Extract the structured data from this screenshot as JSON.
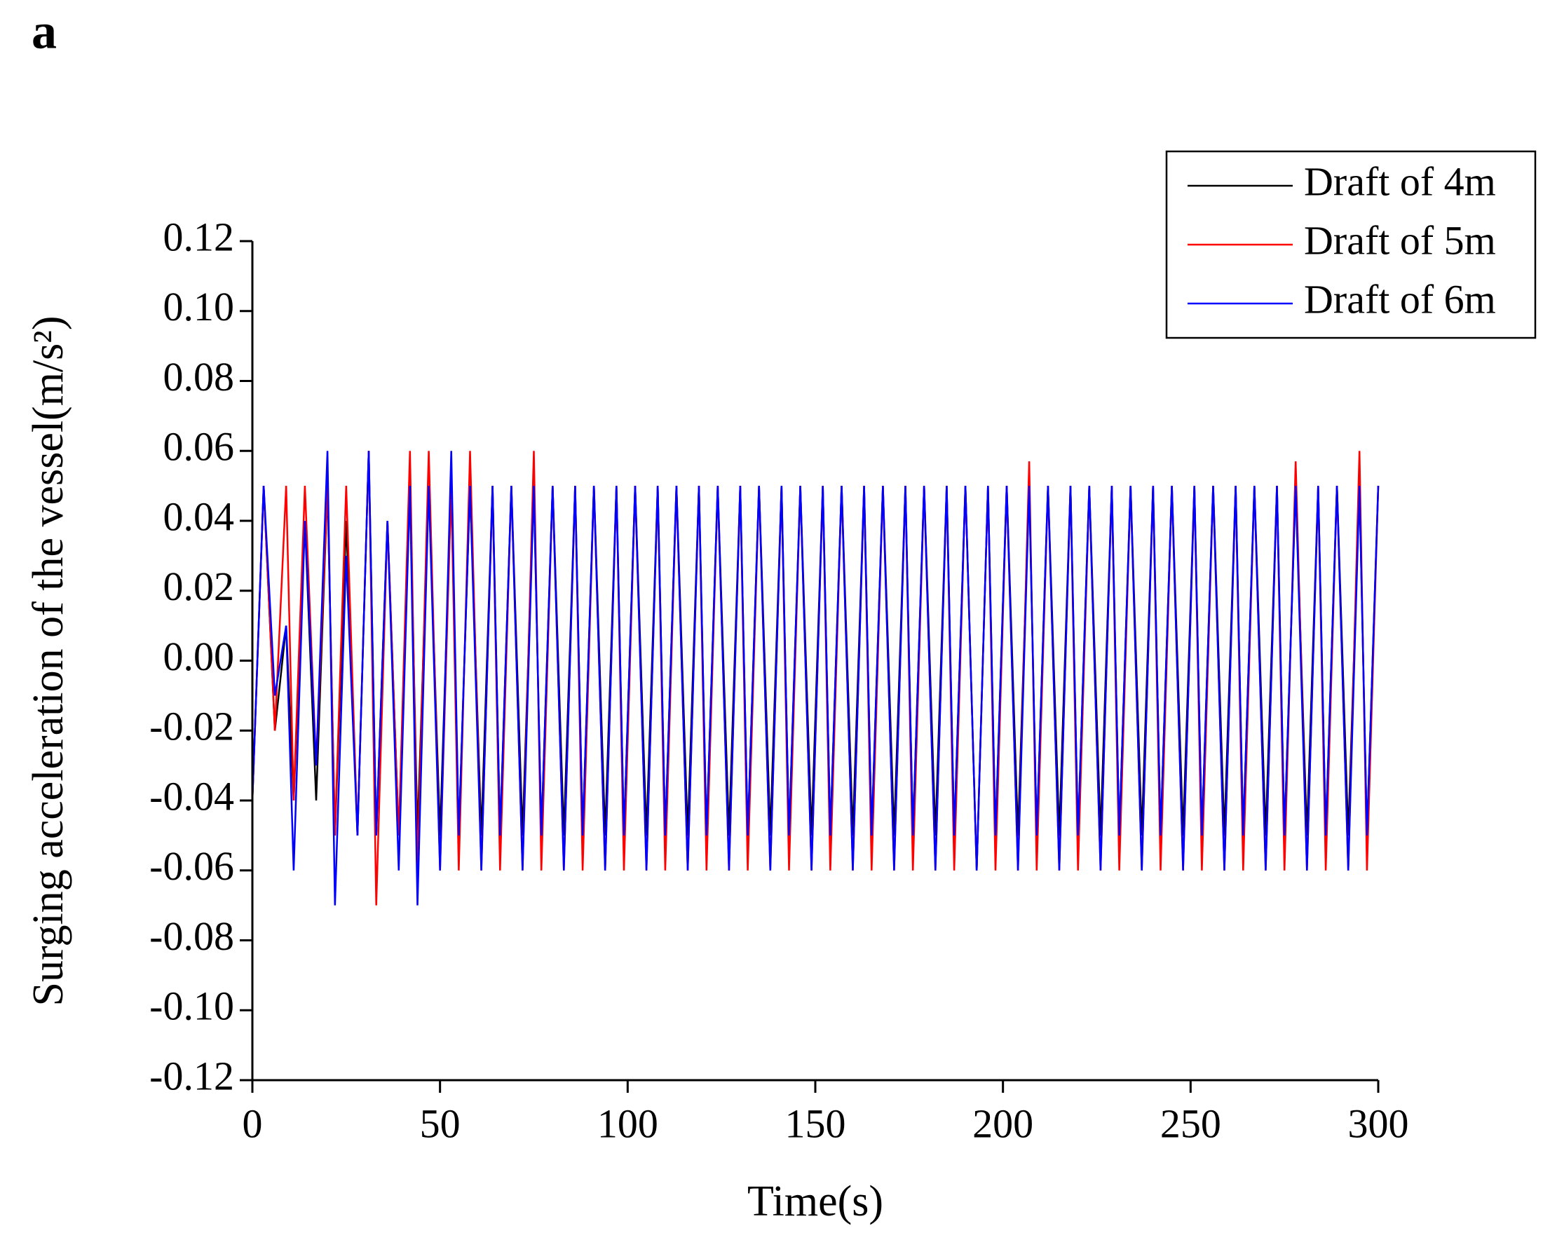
{
  "chart_data": {
    "type": "line",
    "panel_label": "a",
    "xlabel": "Time(s)",
    "ylabel": "Surging acceleration of the vessel(m/s²)",
    "xlim": [
      0,
      300
    ],
    "xticks": [
      0,
      50,
      100,
      150,
      200,
      250,
      300
    ],
    "ylim": [
      -0.12,
      0.12
    ],
    "yticks": [
      0.12,
      {
        "value": 0.1,
        "label": "0.10"
      },
      0.08,
      0.06,
      0.04,
      0.02,
      {
        "value": 0,
        "label": "0.00"
      },
      -0.02,
      -0.04,
      -0.06,
      -0.08,
      {
        "value": -0.1,
        "label": "-0.10"
      },
      -0.12
    ],
    "legend": "top-right",
    "x": [
      0,
      3,
      6,
      9,
      11,
      14,
      17,
      20,
      22,
      25,
      28,
      31,
      33,
      36,
      39,
      42,
      44,
      47,
      50,
      53,
      55,
      58,
      61,
      64,
      66,
      69,
      72,
      75,
      77,
      80,
      83,
      86,
      88,
      91,
      94,
      97,
      99,
      102,
      105,
      108,
      110,
      113,
      116,
      119,
      121,
      124,
      127,
      130,
      132,
      135,
      138,
      141,
      143,
      146,
      149,
      152,
      154,
      157,
      160,
      163,
      165,
      168,
      171,
      174,
      176,
      179,
      182,
      185,
      187,
      190,
      193,
      196,
      198,
      201,
      204,
      207,
      209,
      212,
      215,
      218,
      220,
      223,
      226,
      229,
      231,
      234,
      237,
      240,
      242,
      245,
      248,
      251,
      253,
      256,
      259,
      262,
      264,
      267,
      270,
      273,
      275,
      278,
      281,
      284,
      286,
      289,
      292,
      295,
      297,
      300
    ],
    "series": [
      {
        "name": "Draft of 4m",
        "color": "#000000",
        "values": [
          -0.04,
          0.05,
          -0.02,
          0.01,
          -0.04,
          0.04,
          -0.04,
          0.05,
          -0.05,
          0.04,
          -0.05,
          0.06,
          -0.05,
          0.04,
          -0.05,
          0.05,
          -0.05,
          0.05,
          -0.05,
          0.05,
          -0.05,
          0.05,
          -0.05,
          0.05,
          -0.05,
          0.05,
          -0.05,
          0.05,
          -0.05,
          0.05,
          -0.05,
          0.05,
          -0.05,
          0.05,
          -0.05,
          0.05,
          -0.05,
          0.05,
          -0.05,
          0.05,
          -0.05,
          0.05,
          -0.05,
          0.05,
          -0.05,
          0.05,
          -0.05,
          0.05,
          -0.05,
          0.05,
          -0.05,
          0.05,
          -0.05,
          0.05,
          -0.05,
          0.05,
          -0.05,
          0.05,
          -0.05,
          0.05,
          -0.05,
          0.05,
          -0.05,
          0.05,
          -0.05,
          0.05,
          -0.05,
          0.05,
          -0.05,
          0.05,
          -0.06,
          0.05,
          -0.05,
          0.05,
          -0.05,
          0.05,
          -0.05,
          0.05,
          -0.05,
          0.05,
          -0.05,
          0.05,
          -0.05,
          0.05,
          -0.05,
          0.05,
          -0.05,
          0.05,
          -0.05,
          0.05,
          -0.05,
          0.05,
          -0.05,
          0.05,
          -0.05,
          0.05,
          -0.05,
          0.05,
          -0.05,
          0.05,
          -0.05,
          0.05,
          -0.05,
          0.05,
          -0.05,
          0.05,
          -0.05,
          0.05,
          -0.05,
          0.05
        ]
      },
      {
        "name": "Draft of 5m",
        "color": "#ff0000",
        "values": [
          -0.04,
          0.05,
          -0.02,
          0.05,
          -0.04,
          0.05,
          -0.03,
          0.05,
          -0.05,
          0.05,
          -0.05,
          0.06,
          -0.07,
          0.04,
          -0.05,
          0.06,
          -0.06,
          0.06,
          -0.06,
          0.05,
          -0.06,
          0.06,
          -0.06,
          0.05,
          -0.06,
          0.05,
          -0.06,
          0.06,
          -0.06,
          0.05,
          -0.06,
          0.05,
          -0.06,
          0.05,
          -0.06,
          0.05,
          -0.06,
          0.05,
          -0.06,
          0.05,
          -0.06,
          0.05,
          -0.06,
          0.05,
          -0.06,
          0.05,
          -0.06,
          0.05,
          -0.06,
          0.05,
          -0.06,
          0.05,
          -0.06,
          0.05,
          -0.06,
          0.05,
          -0.06,
          0.05,
          -0.06,
          0.05,
          -0.06,
          0.05,
          -0.06,
          0.05,
          -0.06,
          0.05,
          -0.06,
          0.05,
          -0.06,
          0.05,
          -0.06,
          0.05,
          -0.06,
          0.05,
          -0.06,
          0.057,
          -0.06,
          0.05,
          -0.06,
          0.05,
          -0.06,
          0.05,
          -0.06,
          0.05,
          -0.06,
          0.05,
          -0.06,
          0.05,
          -0.06,
          0.05,
          -0.06,
          0.05,
          -0.06,
          0.05,
          -0.06,
          0.05,
          -0.06,
          0.05,
          -0.06,
          0.05,
          -0.06,
          0.057,
          -0.06,
          0.05,
          -0.06,
          0.05,
          -0.06,
          0.06,
          -0.06,
          0.05
        ]
      },
      {
        "name": "Draft of 6m",
        "color": "#0000ff",
        "values": [
          -0.04,
          0.05,
          -0.01,
          0.01,
          -0.06,
          0.04,
          -0.03,
          0.06,
          -0.07,
          0.03,
          -0.05,
          0.06,
          -0.05,
          0.04,
          -0.06,
          0.05,
          -0.07,
          0.05,
          -0.06,
          0.06,
          -0.05,
          0.05,
          -0.06,
          0.05,
          -0.05,
          0.05,
          -0.06,
          0.05,
          -0.05,
          0.05,
          -0.06,
          0.05,
          -0.05,
          0.05,
          -0.06,
          0.05,
          -0.05,
          0.05,
          -0.06,
          0.05,
          -0.05,
          0.05,
          -0.06,
          0.05,
          -0.05,
          0.05,
          -0.06,
          0.05,
          -0.05,
          0.05,
          -0.06,
          0.05,
          -0.05,
          0.05,
          -0.06,
          0.05,
          -0.05,
          0.05,
          -0.06,
          0.05,
          -0.05,
          0.05,
          -0.06,
          0.05,
          -0.05,
          0.05,
          -0.06,
          0.05,
          -0.05,
          0.05,
          -0.06,
          0.05,
          -0.05,
          0.05,
          -0.06,
          0.05,
          -0.05,
          0.05,
          -0.06,
          0.05,
          -0.05,
          0.05,
          -0.06,
          0.05,
          -0.05,
          0.05,
          -0.06,
          0.05,
          -0.05,
          0.05,
          -0.06,
          0.05,
          -0.05,
          0.05,
          -0.06,
          0.05,
          -0.05,
          0.05,
          -0.06,
          0.05,
          -0.05,
          0.05,
          -0.06,
          0.05,
          -0.05,
          0.05,
          -0.06,
          0.05,
          -0.05,
          0.05
        ]
      }
    ]
  }
}
